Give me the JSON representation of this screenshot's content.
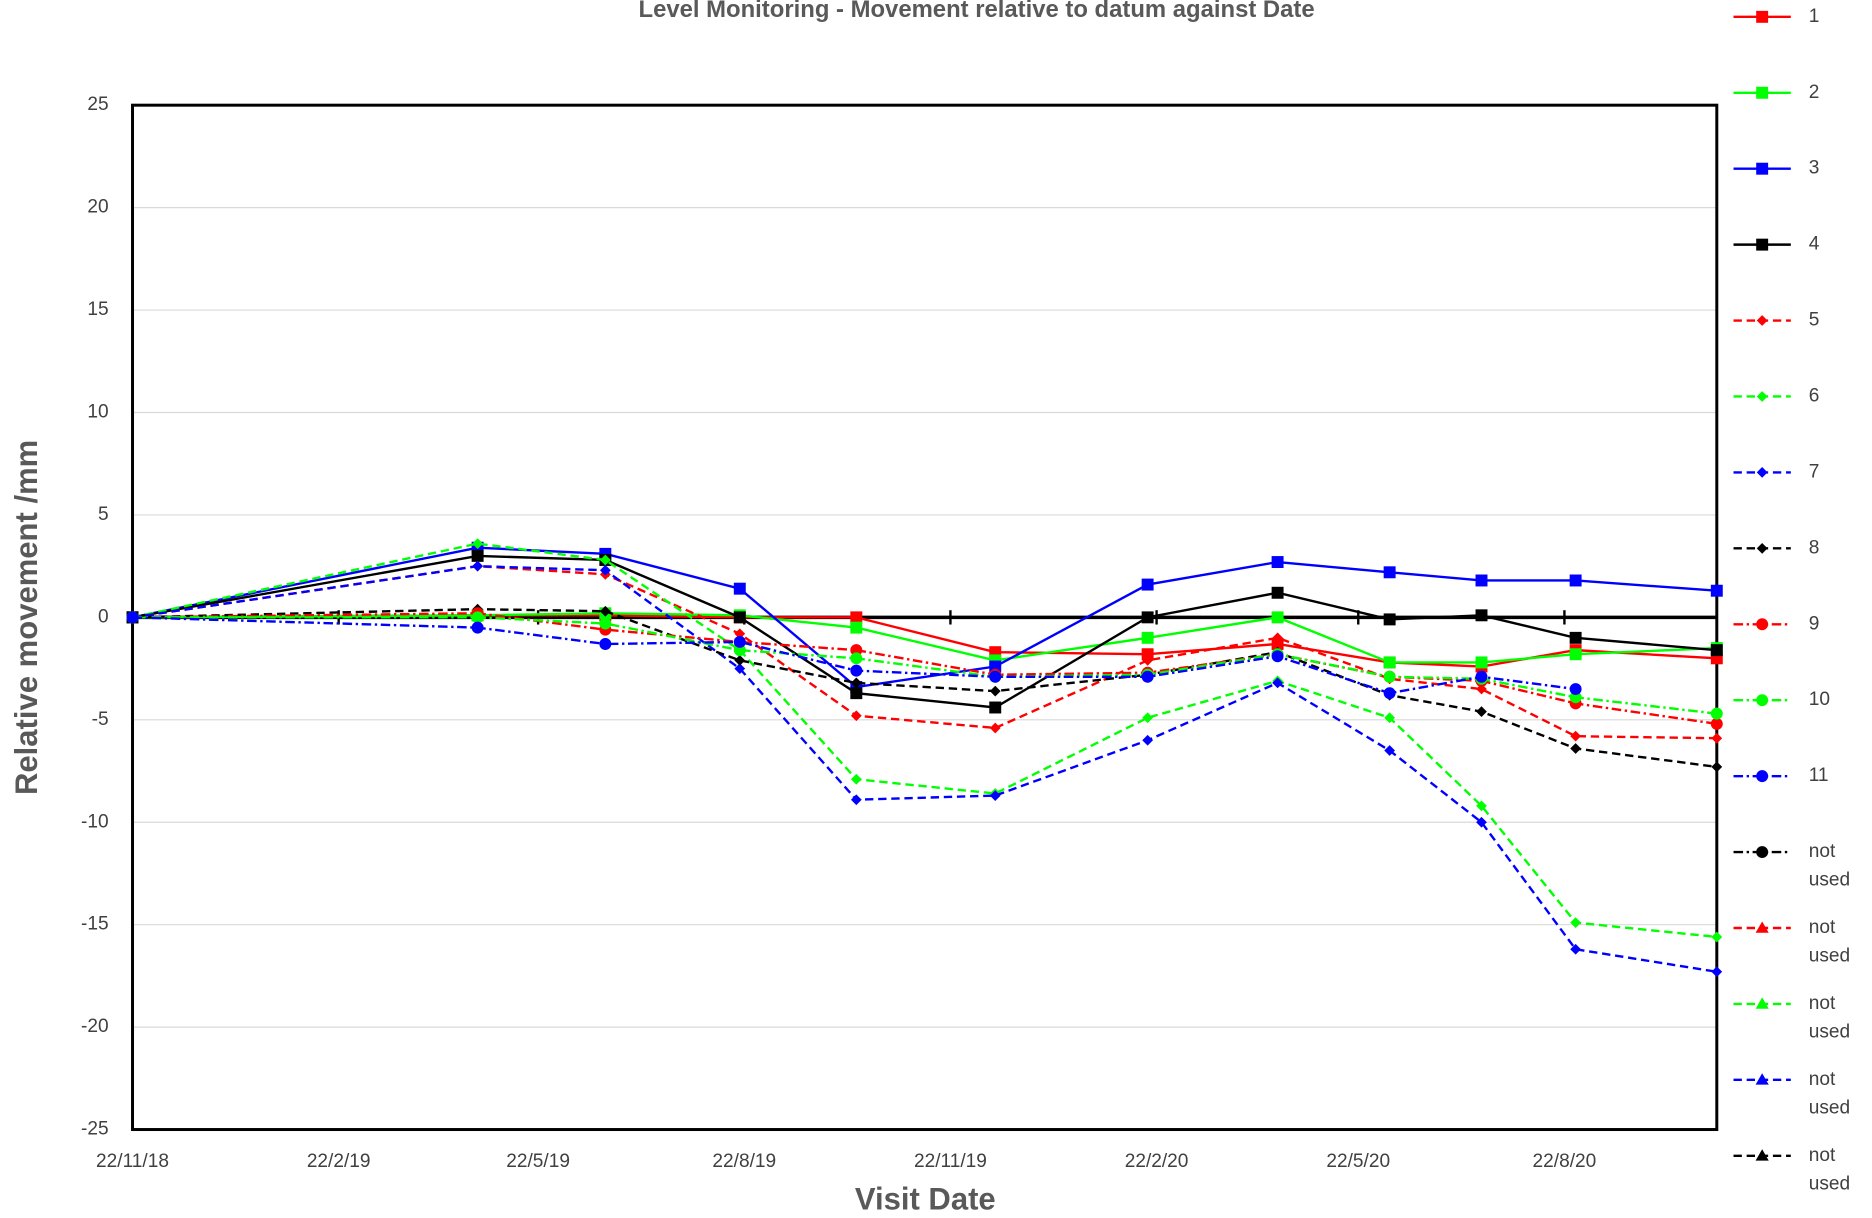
{
  "chart_data": {
    "type": "line",
    "title": "Level Monitoring - Movement relative to datum against Date",
    "xlabel": "Visit Date",
    "ylabel": "Relative movement /mm",
    "x": [
      "22/11/18",
      "25/4/19",
      "21/6/19",
      "20/8/19",
      "11/10/19",
      "12/12/19",
      "18/2/20",
      "16/4/20",
      "5/6/20",
      "16/7/20",
      "27/8/20",
      "29/10/20"
    ],
    "xlim": [
      "22/11/18",
      "29/10/20"
    ],
    "xticks": [
      "22/11/18",
      "22/2/19",
      "22/5/19",
      "22/8/19",
      "22/11/19",
      "22/2/20",
      "22/5/20",
      "22/8/20"
    ],
    "ylim": [
      -25,
      25
    ],
    "yticks": [
      -25,
      -20,
      -15,
      -10,
      -5,
      0,
      5,
      10,
      15,
      20,
      25
    ],
    "grid": true,
    "legend": "right",
    "series": [
      {
        "name": "1",
        "color": "#ff0000",
        "line_style": "solid",
        "marker": "square",
        "values": [
          0,
          0.1,
          0.1,
          0,
          0,
          -1.7,
          -1.8,
          -1.3,
          -2.2,
          -2.4,
          -1.6,
          -2.0
        ]
      },
      {
        "name": "2",
        "color": "#00ff00",
        "line_style": "solid",
        "marker": "square",
        "values": [
          0,
          0.1,
          0.2,
          0.1,
          -0.5,
          -2.1,
          -1.0,
          0,
          -2.2,
          -2.2,
          -1.8,
          -1.5
        ]
      },
      {
        "name": "3",
        "color": "#0000ff",
        "line_style": "solid",
        "marker": "square",
        "values": [
          0,
          3.4,
          3.1,
          1.4,
          -3.4,
          -2.4,
          1.6,
          2.7,
          2.2,
          1.8,
          1.8,
          1.3
        ]
      },
      {
        "name": "4",
        "color": "#000000",
        "line_style": "solid",
        "marker": "square",
        "values": [
          0,
          3.0,
          2.8,
          0,
          -3.7,
          -4.4,
          0,
          1.2,
          -0.1,
          0.1,
          -1.0,
          -1.6
        ]
      },
      {
        "name": "5",
        "color": "#ff0000",
        "line_style": "dashed",
        "marker": "diamond",
        "values": [
          0,
          2.5,
          2.1,
          -0.8,
          -4.8,
          -5.4,
          -2.1,
          -1.0,
          -3.0,
          -3.5,
          -5.8,
          -5.9
        ]
      },
      {
        "name": "6",
        "color": "#00ff00",
        "line_style": "dashed",
        "marker": "diamond",
        "values": [
          0,
          3.6,
          2.8,
          -1.6,
          -7.9,
          -8.6,
          -4.9,
          -3.1,
          -4.9,
          -9.2,
          -14.9,
          -15.6
        ]
      },
      {
        "name": "7",
        "color": "#0000ff",
        "line_style": "dashed",
        "marker": "diamond",
        "values": [
          0,
          2.5,
          2.3,
          -2.5,
          -8.9,
          -8.7,
          -6.0,
          -3.2,
          -6.5,
          -10.0,
          -16.2,
          -17.3
        ]
      },
      {
        "name": "8",
        "color": "#000000",
        "line_style": "dashed",
        "marker": "diamond",
        "values": [
          0,
          0.4,
          0.3,
          -2.1,
          -3.2,
          -3.6,
          -2.8,
          -1.7,
          -3.8,
          -4.6,
          -6.4,
          -7.3
        ]
      },
      {
        "name": "9",
        "color": "#ff0000",
        "line_style": "dashdot",
        "marker": "circle",
        "values": [
          0,
          0.2,
          -0.6,
          -1.2,
          -1.6,
          -2.8,
          -2.7,
          -1.8,
          -2.9,
          -3.1,
          -4.2,
          -5.2
        ]
      },
      {
        "name": "10",
        "color": "#00ff00",
        "line_style": "dashdot",
        "marker": "circle",
        "values": [
          0,
          0,
          -0.3,
          -1.6,
          -2.0,
          -2.9,
          -2.8,
          -1.8,
          -2.9,
          -3.0,
          -3.9,
          -4.7
        ]
      },
      {
        "name": "11",
        "color": "#0000ff",
        "line_style": "dashdot",
        "marker": "circle",
        "values": [
          0,
          -0.5,
          -1.3,
          -1.2,
          -2.6,
          -2.9,
          -2.9,
          -1.9,
          -3.7,
          -2.9,
          -3.5,
          null
        ]
      },
      {
        "name": "not used",
        "color": "#000000",
        "line_style": "dashdot",
        "marker": "circle",
        "values": [
          null,
          null,
          null,
          null,
          null,
          null,
          null,
          null,
          null,
          null,
          null,
          null
        ]
      },
      {
        "name": "not used",
        "color": "#ff0000",
        "line_style": "dashed",
        "marker": "triangle",
        "values": [
          null,
          null,
          null,
          null,
          null,
          null,
          null,
          null,
          null,
          null,
          null,
          null
        ]
      },
      {
        "name": "not used",
        "color": "#00ff00",
        "line_style": "dashed",
        "marker": "triangle",
        "values": [
          null,
          null,
          null,
          null,
          null,
          null,
          null,
          null,
          null,
          null,
          null,
          null
        ]
      },
      {
        "name": "not used",
        "color": "#0000ff",
        "line_style": "dashed",
        "marker": "triangle",
        "values": [
          null,
          null,
          null,
          null,
          null,
          null,
          null,
          null,
          null,
          null,
          null,
          null
        ]
      },
      {
        "name": "not used",
        "color": "#000000",
        "line_style": "dashed",
        "marker": "triangle",
        "values": [
          null,
          null,
          null,
          null,
          null,
          null,
          null,
          null,
          null,
          null,
          null,
          null
        ]
      }
    ]
  }
}
